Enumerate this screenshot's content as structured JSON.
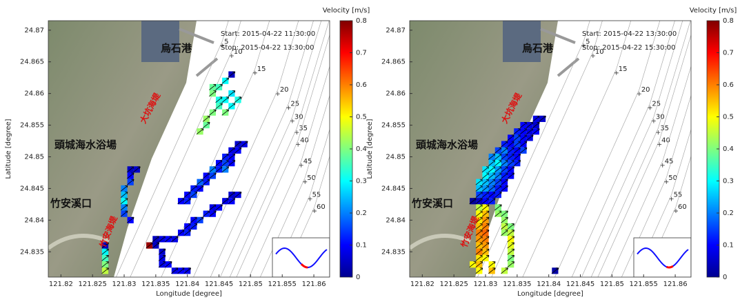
{
  "chart_data": [
    {
      "type": "velocity-map",
      "colormap": "jet",
      "start_label": "Start: 2015-04-22 11:30:00",
      "stop_label": "Stop: 2015-04-22 13:30:00",
      "colorbar_label": "Velocity [m/s]",
      "xlabel": "Longitude [degree]",
      "ylabel": "Latitude [degree]",
      "xlim": [
        121.818,
        121.8625
      ],
      "ylim": [
        24.831,
        24.8715
      ],
      "xticks": [
        121.82,
        121.825,
        121.83,
        121.835,
        121.84,
        121.845,
        121.85,
        121.855,
        121.86
      ],
      "yticks": [
        24.835,
        24.84,
        24.845,
        24.85,
        24.855,
        24.86,
        24.865,
        24.87
      ],
      "clim": [
        0,
        0.8
      ],
      "cticks": [
        0,
        0.1,
        0.2,
        0.3,
        0.4,
        0.5,
        0.6,
        0.7,
        0.8
      ],
      "place_names": [
        "烏石港",
        "頭城海水浴場",
        "竹安溪口"
      ],
      "seawall_names": [
        "大坑海堤",
        "竹安海堤"
      ],
      "depth_labels": [
        {
          "text": "5",
          "lon": 121.8455,
          "lat": 24.8682
        },
        {
          "text": "10",
          "lon": 121.847,
          "lat": 24.8666
        },
        {
          "text": "15",
          "lon": 121.8507,
          "lat": 24.8639
        },
        {
          "text": "20",
          "lon": 121.8543,
          "lat": 24.8606
        },
        {
          "text": "25",
          "lon": 121.856,
          "lat": 24.8584
        },
        {
          "text": "30",
          "lon": 121.8566,
          "lat": 24.8563
        },
        {
          "text": "35",
          "lon": 121.8573,
          "lat": 24.8545
        },
        {
          "text": "40",
          "lon": 121.8575,
          "lat": 24.8526
        },
        {
          "text": "45",
          "lon": 121.858,
          "lat": 24.8493
        },
        {
          "text": "50",
          "lon": 121.8586,
          "lat": 24.8467
        },
        {
          "text": "55",
          "lon": 121.8594,
          "lat": 24.844
        },
        {
          "text": "60",
          "lon": 121.8601,
          "lat": 24.8421
        }
      ],
      "cells": [
        [
          121.844,
          24.861,
          0.38
        ],
        [
          121.845,
          24.861,
          0.35
        ],
        [
          121.846,
          24.862,
          0.3
        ],
        [
          121.847,
          24.863,
          0.05
        ],
        [
          121.844,
          24.86,
          0.4
        ],
        [
          121.845,
          24.859,
          0.32
        ],
        [
          121.846,
          24.859,
          0.3
        ],
        [
          121.847,
          24.86,
          0.28
        ],
        [
          121.845,
          24.858,
          0.35
        ],
        [
          121.846,
          24.857,
          0.4
        ],
        [
          121.847,
          24.858,
          0.3
        ],
        [
          121.848,
          24.859,
          0.32
        ],
        [
          121.844,
          24.857,
          0.4
        ],
        [
          121.843,
          24.856,
          0.42
        ],
        [
          121.843,
          24.855,
          0.38
        ],
        [
          121.842,
          24.854,
          0.42
        ],
        [
          121.839,
          24.843,
          0.1
        ],
        [
          121.84,
          24.843,
          0.12
        ],
        [
          121.84,
          24.844,
          0.1
        ],
        [
          121.841,
          24.844,
          0.15
        ],
        [
          121.841,
          24.845,
          0.12
        ],
        [
          121.842,
          24.845,
          0.1
        ],
        [
          121.842,
          24.846,
          0.18
        ],
        [
          121.843,
          24.846,
          0.12
        ],
        [
          121.843,
          24.847,
          0.1
        ],
        [
          121.844,
          24.847,
          0.15
        ],
        [
          121.844,
          24.848,
          0.2
        ],
        [
          121.845,
          24.848,
          0.12
        ],
        [
          121.845,
          24.849,
          0.1
        ],
        [
          121.846,
          24.849,
          0.15
        ],
        [
          121.846,
          24.85,
          0.12
        ],
        [
          121.847,
          24.85,
          0.1
        ],
        [
          121.847,
          24.851,
          0.08
        ],
        [
          121.848,
          24.851,
          0.1
        ],
        [
          121.848,
          24.852,
          0.06
        ],
        [
          121.849,
          24.852,
          0.08
        ],
        [
          121.846,
          24.848,
          0.2
        ],
        [
          121.847,
          24.849,
          0.1
        ],
        [
          121.835,
          24.837,
          0.05
        ],
        [
          121.836,
          24.837,
          0.08
        ],
        [
          121.837,
          24.837,
          0.1
        ],
        [
          121.838,
          24.837,
          0.08
        ],
        [
          121.839,
          24.838,
          0.1
        ],
        [
          121.84,
          24.838,
          0.12
        ],
        [
          121.84,
          24.839,
          0.1
        ],
        [
          121.841,
          24.839,
          0.12
        ],
        [
          121.841,
          24.84,
          0.1
        ],
        [
          121.842,
          24.84,
          0.15
        ],
        [
          121.843,
          24.841,
          0.12
        ],
        [
          121.844,
          24.841,
          0.1
        ],
        [
          121.844,
          24.842,
          0.08
        ],
        [
          121.845,
          24.842,
          0.1
        ],
        [
          121.846,
          24.843,
          0.08
        ],
        [
          121.847,
          24.843,
          0.1
        ],
        [
          121.847,
          24.844,
          0.06
        ],
        [
          121.848,
          24.844,
          0.08
        ],
        [
          121.834,
          24.836,
          0.78
        ],
        [
          121.835,
          24.836,
          0.05
        ],
        [
          121.836,
          24.835,
          0.06
        ],
        [
          121.836,
          24.834,
          0.08
        ],
        [
          121.836,
          24.833,
          0.08
        ],
        [
          121.837,
          24.833,
          0.1
        ],
        [
          121.838,
          24.832,
          0.08
        ],
        [
          121.839,
          24.832,
          0.1
        ],
        [
          121.84,
          24.832,
          0.08
        ],
        [
          121.831,
          24.848,
          0.05
        ],
        [
          121.832,
          24.848,
          0.06
        ],
        [
          121.831,
          24.847,
          0.1
        ],
        [
          121.831,
          24.846,
          0.15
        ],
        [
          121.83,
          24.845,
          0.2
        ],
        [
          121.83,
          24.844,
          0.25
        ],
        [
          121.83,
          24.843,
          0.3
        ],
        [
          121.83,
          24.842,
          0.2
        ],
        [
          121.83,
          24.841,
          0.15
        ],
        [
          121.831,
          24.84,
          0.1
        ],
        [
          121.827,
          24.836,
          0.05
        ],
        [
          121.827,
          24.835,
          0.3
        ],
        [
          121.827,
          24.834,
          0.35
        ],
        [
          121.827,
          24.833,
          0.4
        ],
        [
          121.827,
          24.832,
          0.45
        ]
      ]
    },
    {
      "type": "velocity-map",
      "colormap": "jet",
      "start_label": "Start: 2015-04-22 13:30:00",
      "stop_label": "Stop: 2015-04-22 15:30:00",
      "colorbar_label": "Velocity [m/s]",
      "xlabel": "Longitude [degree]",
      "ylabel": "Latitude [degree]",
      "xlim": [
        121.818,
        121.8625
      ],
      "ylim": [
        24.831,
        24.8715
      ],
      "xticks": [
        121.82,
        121.825,
        121.83,
        121.835,
        121.84,
        121.845,
        121.85,
        121.855,
        121.86
      ],
      "yticks": [
        24.835,
        24.84,
        24.845,
        24.85,
        24.855,
        24.86,
        24.865,
        24.87
      ],
      "clim": [
        0,
        0.8
      ],
      "cticks": [
        0,
        0.1,
        0.2,
        0.3,
        0.4,
        0.5,
        0.6,
        0.7,
        0.8
      ],
      "place_names": [
        "烏石港",
        "頭城海水浴場",
        "竹安溪口"
      ],
      "seawall_names": [
        "大坑海堤",
        "竹安海堤"
      ],
      "depth_labels": [
        {
          "text": "5",
          "lon": 121.8455,
          "lat": 24.8682
        },
        {
          "text": "10",
          "lon": 121.847,
          "lat": 24.8666
        },
        {
          "text": "15",
          "lon": 121.8507,
          "lat": 24.8639
        },
        {
          "text": "20",
          "lon": 121.8543,
          "lat": 24.8606
        },
        {
          "text": "25",
          "lon": 121.856,
          "lat": 24.8584
        },
        {
          "text": "30",
          "lon": 121.8566,
          "lat": 24.8563
        },
        {
          "text": "35",
          "lon": 121.8573,
          "lat": 24.8545
        },
        {
          "text": "40",
          "lon": 121.8575,
          "lat": 24.8526
        },
        {
          "text": "45",
          "lon": 121.858,
          "lat": 24.8493
        },
        {
          "text": "50",
          "lon": 121.8586,
          "lat": 24.8467
        },
        {
          "text": "55",
          "lon": 121.8594,
          "lat": 24.844
        },
        {
          "text": "60",
          "lon": 121.8601,
          "lat": 24.8421
        }
      ],
      "cells": [
        [
          121.838,
          24.856,
          0.08
        ],
        [
          121.839,
          24.856,
          0.06
        ],
        [
          121.836,
          24.855,
          0.1
        ],
        [
          121.837,
          24.855,
          0.08
        ],
        [
          121.838,
          24.855,
          0.06
        ],
        [
          121.835,
          24.854,
          0.12
        ],
        [
          121.836,
          24.854,
          0.1
        ],
        [
          121.837,
          24.854,
          0.08
        ],
        [
          121.838,
          24.854,
          0.1
        ],
        [
          121.834,
          24.853,
          0.1
        ],
        [
          121.835,
          24.853,
          0.15
        ],
        [
          121.836,
          24.853,
          0.1
        ],
        [
          121.837,
          24.853,
          0.08
        ],
        [
          121.833,
          24.852,
          0.12
        ],
        [
          121.834,
          24.852,
          0.1
        ],
        [
          121.835,
          24.852,
          0.15
        ],
        [
          121.836,
          24.852,
          0.1
        ],
        [
          121.832,
          24.851,
          0.15
        ],
        [
          121.833,
          24.851,
          0.2
        ],
        [
          121.834,
          24.851,
          0.12
        ],
        [
          121.835,
          24.851,
          0.1
        ],
        [
          121.836,
          24.851,
          0.15
        ],
        [
          121.831,
          24.85,
          0.2
        ],
        [
          121.832,
          24.85,
          0.25
        ],
        [
          121.833,
          24.85,
          0.15
        ],
        [
          121.834,
          24.85,
          0.12
        ],
        [
          121.835,
          24.85,
          0.1
        ],
        [
          121.831,
          24.849,
          0.25
        ],
        [
          121.832,
          24.849,
          0.3
        ],
        [
          121.833,
          24.849,
          0.2
        ],
        [
          121.834,
          24.849,
          0.15
        ],
        [
          121.835,
          24.849,
          0.12
        ],
        [
          121.83,
          24.848,
          0.28
        ],
        [
          121.831,
          24.848,
          0.3
        ],
        [
          121.832,
          24.848,
          0.22
        ],
        [
          121.833,
          24.848,
          0.15
        ],
        [
          121.834,
          24.848,
          0.1
        ],
        [
          121.83,
          24.847,
          0.3
        ],
        [
          121.831,
          24.847,
          0.25
        ],
        [
          121.832,
          24.847,
          0.2
        ],
        [
          121.833,
          24.847,
          0.12
        ],
        [
          121.834,
          24.847,
          0.1
        ],
        [
          121.829,
          24.846,
          0.28
        ],
        [
          121.83,
          24.846,
          0.25
        ],
        [
          121.831,
          24.846,
          0.2
        ],
        [
          121.832,
          24.846,
          0.15
        ],
        [
          121.833,
          24.846,
          0.1
        ],
        [
          121.829,
          24.845,
          0.25
        ],
        [
          121.83,
          24.845,
          0.22
        ],
        [
          121.831,
          24.845,
          0.18
        ],
        [
          121.832,
          24.845,
          0.12
        ],
        [
          121.833,
          24.845,
          0.1
        ],
        [
          121.829,
          24.844,
          0.15
        ],
        [
          121.83,
          24.844,
          0.12
        ],
        [
          121.831,
          24.844,
          0.1
        ],
        [
          121.832,
          24.844,
          0.12
        ],
        [
          121.828,
          24.843,
          0.02
        ],
        [
          121.829,
          24.843,
          0.05
        ],
        [
          121.83,
          24.843,
          0.1
        ],
        [
          121.831,
          24.843,
          0.12
        ],
        [
          121.829,
          24.842,
          0.45
        ],
        [
          121.83,
          24.842,
          0.5
        ],
        [
          121.832,
          24.842,
          0.4
        ],
        [
          121.829,
          24.841,
          0.5
        ],
        [
          121.83,
          24.841,
          0.55
        ],
        [
          121.832,
          24.841,
          0.42
        ],
        [
          121.833,
          24.841,
          0.4
        ],
        [
          121.829,
          24.84,
          0.52
        ],
        [
          121.83,
          24.84,
          0.58
        ],
        [
          121.833,
          24.84,
          0.42
        ],
        [
          121.829,
          24.839,
          0.55
        ],
        [
          121.83,
          24.839,
          0.6
        ],
        [
          121.833,
          24.839,
          0.45
        ],
        [
          121.834,
          24.839,
          0.4
        ],
        [
          121.829,
          24.838,
          0.6
        ],
        [
          121.83,
          24.838,
          0.62
        ],
        [
          121.833,
          24.838,
          0.42
        ],
        [
          121.834,
          24.838,
          0.45
        ],
        [
          121.829,
          24.837,
          0.58
        ],
        [
          121.83,
          24.837,
          0.6
        ],
        [
          121.834,
          24.837,
          0.5
        ],
        [
          121.829,
          24.836,
          0.55
        ],
        [
          121.83,
          24.836,
          0.58
        ],
        [
          121.834,
          24.836,
          0.48
        ],
        [
          121.829,
          24.835,
          0.6
        ],
        [
          121.83,
          24.835,
          0.55
        ],
        [
          121.834,
          24.835,
          0.45
        ],
        [
          121.829,
          24.834,
          0.52
        ],
        [
          121.83,
          24.834,
          0.5
        ],
        [
          121.834,
          24.834,
          0.4
        ],
        [
          121.828,
          24.833,
          0.5
        ],
        [
          121.829,
          24.833,
          0.55
        ],
        [
          121.831,
          24.833,
          0.5
        ],
        [
          121.834,
          24.833,
          0.42
        ],
        [
          121.829,
          24.832,
          0.5
        ],
        [
          121.831,
          24.832,
          0.55
        ],
        [
          121.833,
          24.832,
          0.45
        ],
        [
          121.841,
          24.832,
          0.03
        ]
      ]
    }
  ]
}
